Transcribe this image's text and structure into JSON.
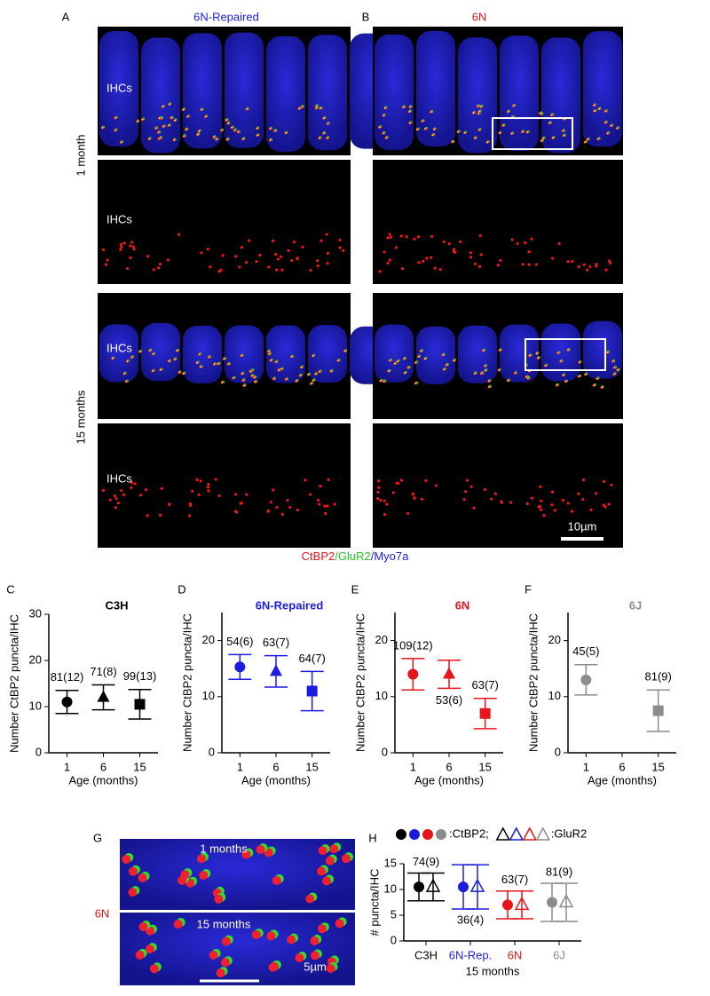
{
  "figure": {
    "label_a": "A",
    "label_b": "B",
    "title_a": "6N-Repaired",
    "title_b": "6N",
    "row_1": "1 month",
    "row_2": "15 months",
    "ihc": "IHCs",
    "scale": "10µm",
    "caption": [
      {
        "text": "CtBP2",
        "color": "#e8141c"
      },
      {
        "text": "/GluR2",
        "color": "#22c322"
      },
      {
        "text": "/Myo7a",
        "color": "#1c1ce0"
      }
    ]
  },
  "panel_g": {
    "label": "G",
    "strain": "6N",
    "top": "1 months",
    "bottom": "15 months",
    "scale": "5µm"
  },
  "chart_data": [
    {
      "type": "scatter",
      "panel": "C",
      "title": "C3H",
      "color": "#000000",
      "xlabel": "Age (months)",
      "ylabel": "Number CtBP2 puncta/IHC",
      "categories": [
        "1",
        "6",
        "15"
      ],
      "values": [
        11,
        12,
        10.5
      ],
      "errors": [
        2.5,
        2.7,
        3.2
      ],
      "n_labels": [
        "81(12)",
        "71(8)",
        "99(13)"
      ],
      "ylim": [
        0,
        30
      ],
      "yticks": [
        0,
        10,
        20,
        30
      ]
    },
    {
      "type": "scatter",
      "panel": "D",
      "title": "6N-Repaired",
      "color": "#1c1ce0",
      "xlabel": "Age (months)",
      "ylabel": "Number CtBP2 puncta/IHC",
      "categories": [
        "1",
        "6",
        "15"
      ],
      "values": [
        15.3,
        14.5,
        11
      ],
      "errors": [
        2.2,
        2.8,
        3.5
      ],
      "n_labels": [
        "54(6)",
        "63(7)",
        "64(7)"
      ],
      "ylim": [
        0,
        25
      ],
      "yticks": [
        0,
        10,
        20
      ]
    },
    {
      "type": "scatter",
      "panel": "E",
      "title": "6N",
      "color": "#e8141c",
      "xlabel": "Age (months)",
      "ylabel": "Number CtBP2 puncta/IHC",
      "categories": [
        "1",
        "6",
        "15"
      ],
      "values": [
        14,
        14,
        7
      ],
      "errors": [
        2.8,
        2.5,
        2.7
      ],
      "n_labels": [
        "109(12)",
        "53(6)",
        "63(7)"
      ],
      "ylim": [
        0,
        25
      ],
      "yticks": [
        0,
        10,
        20
      ]
    },
    {
      "type": "scatter",
      "panel": "F",
      "title": "6J",
      "color": "#8c8c8c",
      "xlabel": "Age (months)",
      "ylabel": "Number CtBP2 puncta/IHC",
      "categories": [
        "1",
        "6",
        "15"
      ],
      "values": [
        13,
        null,
        7.5
      ],
      "errors": [
        2.7,
        null,
        3.7
      ],
      "n_labels": [
        "45(5)",
        null,
        "81(9)"
      ],
      "ylim": [
        0,
        25
      ],
      "yticks": [
        0,
        10,
        20
      ]
    },
    {
      "type": "pair",
      "panel": "H",
      "ylabel": "# puncta/IHC",
      "xlabel": "15 months",
      "categories": [
        "C3H",
        "6N-Rep.",
        "6N",
        "6J"
      ],
      "category_colors": [
        "#000000",
        "#1c1ce0",
        "#e8141c",
        "#8c8c8c"
      ],
      "series": [
        {
          "name": ":CtBP2;",
          "values": [
            10.5,
            10.5,
            7,
            7.5
          ],
          "errors": [
            2.7,
            4.3,
            2.7,
            3.7
          ]
        },
        {
          "name": ":GluR2",
          "values": [
            10.5,
            10.5,
            7,
            7.5
          ],
          "errors": [
            2.7,
            4.3,
            2.7,
            3.7
          ]
        }
      ],
      "n_labels": [
        "74(9)",
        "36(4)",
        "63(7)",
        "81(9)"
      ],
      "ylim": [
        0,
        15
      ],
      "yticks": [
        0,
        5,
        10,
        15
      ]
    }
  ]
}
